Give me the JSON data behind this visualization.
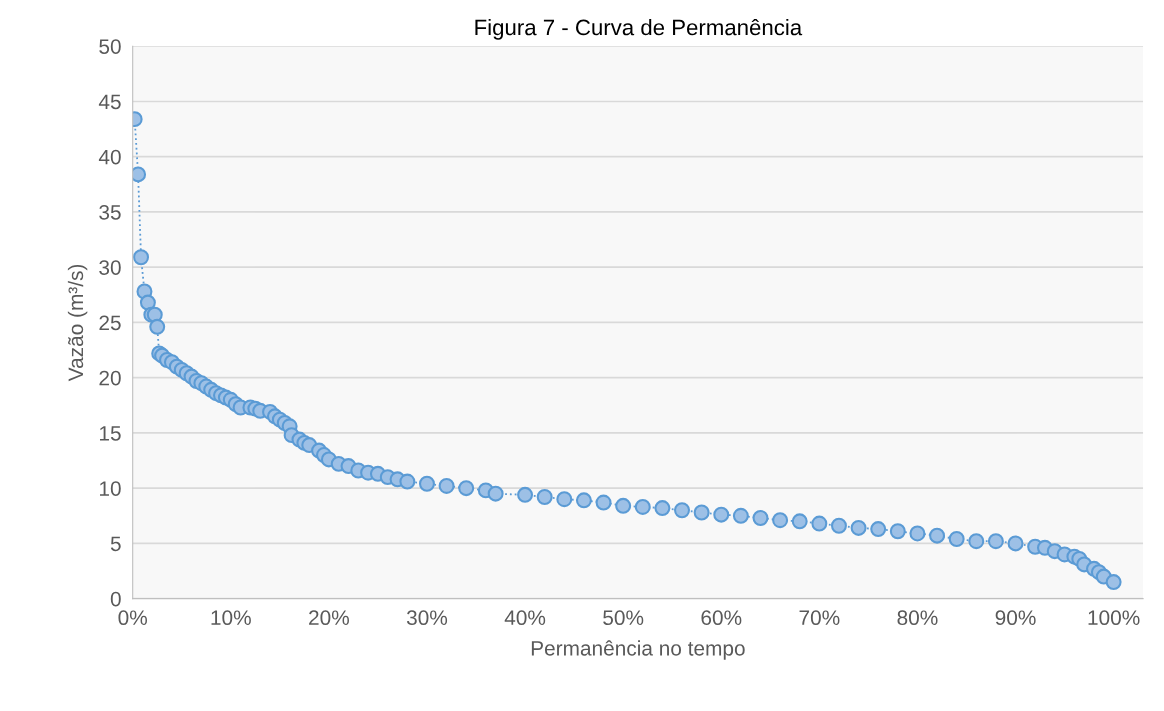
{
  "chart_data": {
    "type": "line",
    "title": "Figura 7 - Curva de Permanência",
    "xlabel": "Permanência no tempo",
    "ylabel": "Vazão (m³/s)",
    "x": [
      0.2,
      0.55,
      0.85,
      1.2,
      1.55,
      1.9,
      2.25,
      2.5,
      2.7,
      3,
      3.5,
      4,
      4.5,
      5,
      5.5,
      6,
      6.5,
      7,
      7.5,
      8,
      8.5,
      9,
      9.5,
      10,
      10.5,
      11,
      12,
      12.5,
      13,
      14,
      14.5,
      15,
      15.5,
      16,
      16.2,
      17,
      17.5,
      18,
      19,
      19.5,
      20,
      21,
      22,
      23,
      24,
      25,
      26,
      27,
      28,
      30,
      32,
      34,
      36,
      37,
      40,
      42,
      44,
      46,
      48,
      50,
      52,
      54,
      56,
      58,
      60,
      62,
      64,
      66,
      68,
      70,
      72,
      74,
      76,
      78,
      80,
      82,
      84,
      86,
      88,
      90,
      92,
      93,
      94,
      95,
      96,
      96.5,
      97,
      98,
      98.5,
      99,
      100
    ],
    "series": [
      {
        "color": "#5b9bd5",
        "values": [
          43.4,
          38.4,
          30.9,
          27.8,
          26.8,
          25.7,
          25.7,
          24.6,
          22.2,
          22.0,
          21.6,
          21.4,
          21.0,
          20.7,
          20.4,
          20.1,
          19.7,
          19.5,
          19.2,
          18.9,
          18.6,
          18.4,
          18.2,
          18.0,
          17.6,
          17.3,
          17.3,
          17.2,
          17.0,
          16.9,
          16.5,
          16.2,
          15.9,
          15.6,
          14.8,
          14.4,
          14.1,
          13.9,
          13.4,
          13.0,
          12.6,
          12.2,
          12.0,
          11.6,
          11.4,
          11.3,
          11.0,
          10.8,
          10.6,
          10.4,
          10.2,
          10.0,
          9.8,
          9.5,
          9.4,
          9.2,
          9.0,
          8.9,
          8.7,
          8.4,
          8.3,
          8.2,
          8.0,
          7.8,
          7.6,
          7.5,
          7.3,
          7.1,
          7.0,
          6.8,
          6.6,
          6.4,
          6.3,
          6.1,
          5.9,
          5.7,
          5.4,
          5.2,
          5.2,
          5.0,
          4.7,
          4.6,
          4.3,
          4.0,
          3.8,
          3.6,
          3.1,
          2.7,
          2.4,
          2.0,
          1.5
        ]
      }
    ],
    "xlim": [
      0,
      103
    ],
    "xticks": [
      {
        "value": 0,
        "label": "0%"
      },
      {
        "value": 10,
        "label": "10%"
      },
      {
        "value": 20,
        "label": "20%"
      },
      {
        "value": 30,
        "label": "30%"
      },
      {
        "value": 40,
        "label": "40%"
      },
      {
        "value": 50,
        "label": "50%"
      },
      {
        "value": 60,
        "label": "60%"
      },
      {
        "value": 70,
        "label": "70%"
      },
      {
        "value": 80,
        "label": "80%"
      },
      {
        "value": 90,
        "label": "90%"
      },
      {
        "value": 100,
        "label": "100%"
      }
    ],
    "ylim": [
      0,
      50
    ],
    "yticks": [
      0,
      5,
      10,
      15,
      20,
      25,
      30,
      35,
      40,
      45,
      50
    ],
    "grid": "y",
    "marker": "circle",
    "line_style": "dotted"
  }
}
